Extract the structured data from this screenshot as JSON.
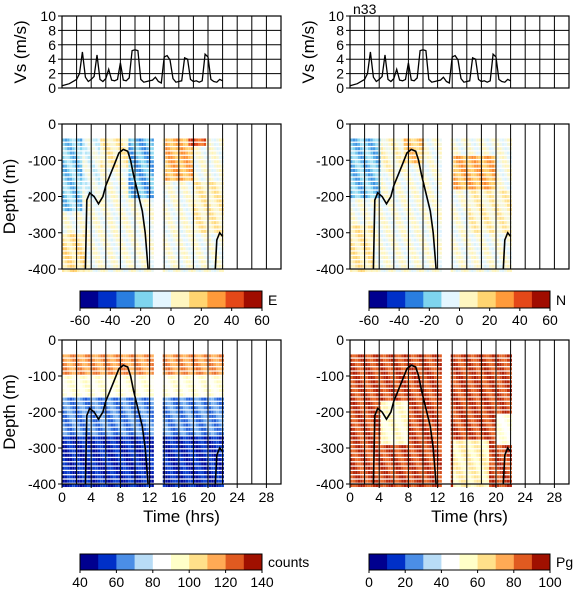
{
  "chart_data": [
    {
      "id": "vs_left",
      "type": "line",
      "ylabel": "Vs (m/s)",
      "ylim": [
        0,
        10
      ],
      "yticks": [
        "0",
        "2",
        "4",
        "6",
        "8",
        "10"
      ],
      "xlim": [
        0,
        30
      ],
      "grid": true,
      "x": [
        0,
        1,
        2,
        2.4,
        2.8,
        3.2,
        3.6,
        4,
        4.4,
        4.8,
        5.2,
        5.6,
        6,
        6.4,
        6.8,
        7.2,
        7.6,
        8,
        8.4,
        8.8,
        9.2,
        9.6,
        10,
        10.4,
        10.8,
        11.2,
        11.6,
        12,
        12.4,
        12.8,
        13.2,
        13.6,
        14,
        14.4,
        14.8,
        15.2,
        15.6,
        16,
        16.4,
        16.8,
        17.2,
        17.6,
        18,
        18.4,
        18.8,
        19.2,
        19.6,
        20,
        20.4,
        20.8,
        21.2,
        21.6,
        22
      ],
      "values": [
        0.3,
        0.6,
        1.2,
        2.0,
        5.0,
        1.5,
        0.9,
        1.2,
        1.6,
        4.6,
        1.2,
        0.9,
        1.3,
        2.6,
        1.1,
        1.0,
        1.2,
        3.5,
        1.1,
        1.0,
        1.4,
        5.2,
        5.3,
        5.2,
        1.2,
        0.8,
        0.9,
        1.0,
        1.1,
        1.5,
        0.9,
        0.7,
        4.3,
        4.5,
        3.9,
        1.3,
        0.8,
        0.9,
        1.0,
        4.2,
        4.0,
        1.2,
        0.9,
        1.0,
        0.8,
        1.0,
        4.7,
        4.3,
        1.2,
        0.9,
        0.8,
        1.2,
        1.0
      ]
    },
    {
      "id": "vs_right",
      "type": "line",
      "title": "n33",
      "ylabel": "Vs (m/s)",
      "ylim": [
        0,
        10
      ],
      "yticks": [
        "0",
        "2",
        "4",
        "6",
        "8",
        "10"
      ],
      "xlim": [
        0,
        30
      ],
      "grid": true,
      "x": [
        0,
        1,
        2,
        2.4,
        2.8,
        3.2,
        3.6,
        4,
        4.4,
        4.8,
        5.2,
        5.6,
        6,
        6.4,
        6.8,
        7.2,
        7.6,
        8,
        8.4,
        8.8,
        9.2,
        9.6,
        10,
        10.4,
        10.8,
        11.2,
        11.6,
        12,
        12.4,
        12.8,
        13.2,
        13.6,
        14,
        14.4,
        14.8,
        15.2,
        15.6,
        16,
        16.4,
        16.8,
        17.2,
        17.6,
        18,
        18.4,
        18.8,
        19.2,
        19.6,
        20,
        20.4,
        20.8,
        21.2,
        21.6,
        22
      ],
      "values": [
        0.3,
        0.6,
        1.2,
        2.0,
        5.0,
        1.5,
        0.9,
        1.2,
        1.6,
        4.6,
        1.2,
        0.9,
        1.3,
        2.6,
        1.1,
        1.0,
        1.2,
        3.5,
        1.1,
        1.0,
        1.4,
        5.2,
        5.3,
        5.2,
        1.2,
        0.8,
        0.9,
        1.0,
        1.1,
        1.5,
        0.9,
        0.7,
        4.3,
        4.5,
        3.9,
        1.3,
        0.8,
        0.9,
        1.0,
        4.2,
        4.0,
        1.2,
        0.9,
        1.0,
        0.8,
        1.0,
        4.7,
        4.3,
        1.2,
        0.9,
        0.8,
        1.2,
        1.0
      ]
    },
    {
      "id": "E",
      "type": "heatmap",
      "ylabel": "Depth (m)",
      "ylim": [
        -400,
        0
      ],
      "yticks": [
        "0",
        "-100",
        "-200",
        "-300",
        "-400"
      ],
      "xlim": [
        0,
        30
      ],
      "colorbar_label": "E",
      "colorbar_range": [
        -60,
        60
      ],
      "colorbar_ticks": [
        "-60",
        "-40",
        "-20",
        "0",
        "20",
        "40",
        "60"
      ],
      "colormap": [
        "#00008f",
        "#0030c8",
        "#2a7ee0",
        "#7ed4ee",
        "#e4f6ff",
        "#fff6c0",
        "#ffd470",
        "#ff9a3a",
        "#e44818",
        "#a00c00"
      ],
      "data_region": [
        [
          0,
          12.3
        ],
        [
          13.8,
          22
        ]
      ],
      "zones": [
        {
          "t": [
            0,
            2.5
          ],
          "d": [
            -40,
            -240
          ],
          "v": -20
        },
        {
          "t": [
            2.5,
            5
          ],
          "d": [
            -40,
            -200
          ],
          "v": -5
        },
        {
          "t": [
            5,
            9
          ],
          "d": [
            -40,
            -120
          ],
          "v": 10
        },
        {
          "t": [
            9,
            12.3
          ],
          "d": [
            -40,
            -200
          ],
          "v": -25
        },
        {
          "t": [
            14,
            18
          ],
          "d": [
            -40,
            -150
          ],
          "v": 28
        },
        {
          "t": [
            17,
            19.5
          ],
          "d": [
            -20,
            -60
          ],
          "v": 45
        },
        {
          "t": [
            18,
            22
          ],
          "d": [
            -150,
            -300
          ],
          "v": 10
        },
        {
          "t": [
            0,
            3
          ],
          "d": [
            -300,
            -400
          ],
          "v": 15
        }
      ]
    },
    {
      "id": "N",
      "type": "heatmap",
      "ylabel": "",
      "ylim": [
        -400,
        0
      ],
      "yticks": [
        "0",
        "-100",
        "-200",
        "-300",
        "-400"
      ],
      "xlim": [
        0,
        30
      ],
      "colorbar_label": "N",
      "colorbar_range": [
        -60,
        60
      ],
      "colorbar_ticks": [
        "-60",
        "-40",
        "-20",
        "0",
        "20",
        "40",
        "60"
      ],
      "colormap": [
        "#00008f",
        "#0030c8",
        "#2a7ee0",
        "#7ed4ee",
        "#e4f6ff",
        "#fff6c0",
        "#ffd470",
        "#ff9a3a",
        "#e44818",
        "#a00c00"
      ],
      "data_region": [
        [
          0,
          12.3
        ],
        [
          13.8,
          22
        ]
      ],
      "zones": [
        {
          "t": [
            0,
            4
          ],
          "d": [
            -40,
            -200
          ],
          "v": -22
        },
        {
          "t": [
            4,
            7
          ],
          "d": [
            -40,
            -130
          ],
          "v": 5
        },
        {
          "t": [
            7,
            10
          ],
          "d": [
            -40,
            -100
          ],
          "v": 22
        },
        {
          "t": [
            14,
            20
          ],
          "d": [
            -80,
            -180
          ],
          "v": 28
        },
        {
          "t": [
            16,
            22
          ],
          "d": [
            -180,
            -300
          ],
          "v": 8
        },
        {
          "t": [
            0,
            3
          ],
          "d": [
            -280,
            -400
          ],
          "v": 12
        }
      ]
    },
    {
      "id": "counts",
      "type": "heatmap",
      "ylabel": "Depth (m)",
      "xlabel": "Time (hrs)",
      "ylim": [
        -400,
        0
      ],
      "yticks": [
        "0",
        "-100",
        "-200",
        "-300",
        "-400"
      ],
      "xticks": [
        "0",
        "4",
        "8",
        "12",
        "16",
        "20",
        "24",
        "28"
      ],
      "xlim": [
        0,
        30
      ],
      "colorbar_label": "counts",
      "colorbar_range": [
        40,
        140
      ],
      "colorbar_ticks": [
        "40",
        "60",
        "80",
        "100",
        "120",
        "140"
      ],
      "colormap": [
        "#00008f",
        "#0030c8",
        "#4b8ee6",
        "#b8dcf6",
        "#ffffff",
        "#ffffc8",
        "#ffe08a",
        "#ffaa55",
        "#e05a20",
        "#a01000"
      ],
      "data_region": [
        [
          0,
          12.3
        ],
        [
          13.8,
          22
        ]
      ],
      "zones": [
        {
          "t": [
            0,
            22
          ],
          "d": [
            -40,
            -100
          ],
          "v": 120
        },
        {
          "t": [
            0,
            22
          ],
          "d": [
            -100,
            -160
          ],
          "v": 92
        },
        {
          "t": [
            0,
            22
          ],
          "d": [
            -160,
            -260
          ],
          "v": 62
        },
        {
          "t": [
            0,
            22
          ],
          "d": [
            -260,
            -400
          ],
          "v": 48
        }
      ]
    },
    {
      "id": "Pg",
      "type": "heatmap",
      "ylabel": "",
      "xlabel": "Time (hrs)",
      "ylim": [
        -400,
        0
      ],
      "yticks": [
        "0",
        "-100",
        "-200",
        "-300",
        "-400"
      ],
      "xticks": [
        "0",
        "4",
        "8",
        "12",
        "16",
        "20",
        "24",
        "28"
      ],
      "xlim": [
        0,
        30
      ],
      "colorbar_label": "Pg",
      "colorbar_range": [
        0,
        100
      ],
      "colorbar_ticks": [
        "0",
        "20",
        "40",
        "60",
        "80",
        "100"
      ],
      "colormap": [
        "#00008f",
        "#0030c8",
        "#4b8ee6",
        "#b8dcf6",
        "#ffffff",
        "#ffffc8",
        "#ffe08a",
        "#ffaa55",
        "#e05a20",
        "#a01000"
      ],
      "data_region": [
        [
          0,
          12.3
        ],
        [
          13.8,
          22
        ]
      ],
      "zones": [
        {
          "t": [
            0,
            22
          ],
          "d": [
            -40,
            -400
          ],
          "v": 92
        },
        {
          "t": [
            4,
            8
          ],
          "d": [
            -170,
            -280
          ],
          "v": 55
        },
        {
          "t": [
            14,
            19
          ],
          "d": [
            -280,
            -400
          ],
          "v": 60
        },
        {
          "t": [
            20,
            22
          ],
          "d": [
            -200,
            -280
          ],
          "v": 50
        }
      ]
    }
  ]
}
